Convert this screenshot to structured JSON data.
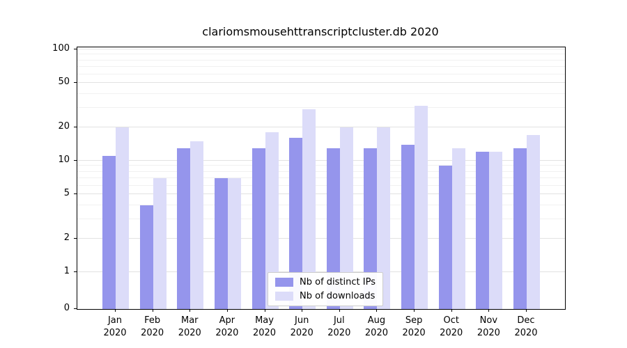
{
  "title": "clariomsmousehttranscriptcluster.db 2020",
  "chart_data": {
    "type": "bar",
    "title": "clariomsmousehttranscriptcluster.db 2020",
    "categories": [
      "Jan 2020",
      "Feb 2020",
      "Mar 2020",
      "Apr 2020",
      "May 2020",
      "Jun 2020",
      "Jul 2020",
      "Aug 2020",
      "Sep 2020",
      "Oct 2020",
      "Nov 2020",
      "Dec 2020"
    ],
    "series": [
      {
        "name": "Nb of distinct IPs",
        "color": "#9595ec",
        "values": [
          11,
          4,
          13,
          7,
          13,
          16,
          13,
          13,
          14,
          9,
          12,
          13
        ]
      },
      {
        "name": "Nb of downloads",
        "color": "#dcdcf9",
        "values": [
          20,
          7,
          15,
          7,
          18,
          29,
          20,
          20,
          31,
          13,
          12,
          17
        ]
      }
    ],
    "xlabel": "",
    "ylabel": "",
    "yscale": "symlog",
    "yticks": [
      0,
      1,
      2,
      5,
      10,
      20,
      50,
      100
    ],
    "ylim": [
      0,
      110
    ],
    "grid": true,
    "legend_position": "lower center"
  },
  "legend": {
    "items": [
      {
        "label": "Nb of distinct IPs"
      },
      {
        "label": "Nb of downloads"
      }
    ]
  }
}
